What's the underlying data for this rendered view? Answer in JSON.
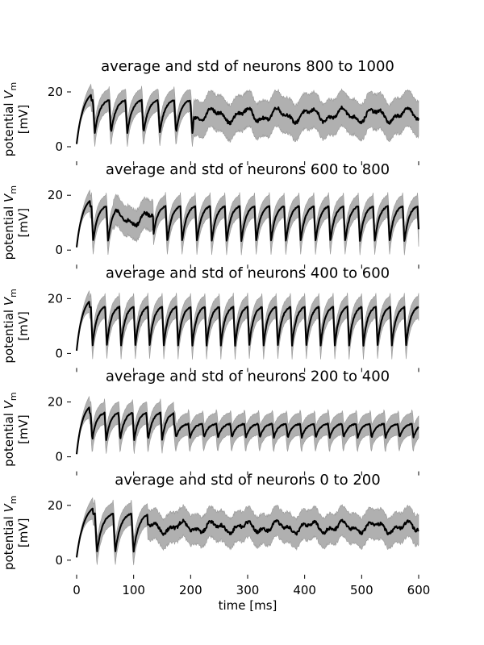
{
  "chart_data": {
    "type": "line",
    "xlabel": "time [ms]",
    "ylabel_text": "potential",
    "ylabel_var": "V",
    "ylabel_sub": "m",
    "ylabel_unit": "[mV]",
    "xlim": [
      0,
      600
    ],
    "ylim": [
      -3,
      23
    ],
    "x_ticks": [
      "0",
      "100",
      "200",
      "300",
      "400",
      "500",
      "600"
    ],
    "y_ticks": [
      "0",
      "20"
    ],
    "line_color": "#000000",
    "band_color": "#b0b0b0",
    "panels": [
      {
        "title": "average and std of neurons 800 to 1000",
        "period_ms": 28.5,
        "trough": 5,
        "peak": 17,
        "std": 4.0,
        "desync_ms": 205,
        "async_mean": 11.5,
        "async_wobble": 2.0,
        "async_std": 6.5
      },
      {
        "title": "average and std of neurons 600 to 800",
        "period_ms": 26.0,
        "trough": 3,
        "peak": 16,
        "std": 4.0,
        "desync_ms": 65,
        "resync_ms": 135,
        "async_mean": 11.5,
        "async_wobble": 2.0,
        "async_std": 5.5
      },
      {
        "title": "average and std of neurons 400 to 600",
        "period_ms": 25.0,
        "trough": 3,
        "peak": 17,
        "std": 4.0,
        "desync_ms": null,
        "async_mean": 10,
        "async_wobble": 2.0,
        "async_std": 4.0
      },
      {
        "title": "average and std of neurons 200 to 400",
        "period_ms": 24.5,
        "trough": 6,
        "peak": 16,
        "std": 4.0,
        "desync_ms": null,
        "async_mean": 10,
        "async_wobble": 2.0,
        "async_std": 5.0,
        "fade_ms": 170,
        "late_trough": 7,
        "late_peak": 12
      },
      {
        "title": "average and std of neurons 0 to 200",
        "period_ms": 32.0,
        "trough": 3,
        "peak": 17,
        "std": 4.0,
        "desync_ms": 125,
        "async_mean": 12,
        "async_wobble": 1.5,
        "async_std": 5.5
      }
    ]
  }
}
